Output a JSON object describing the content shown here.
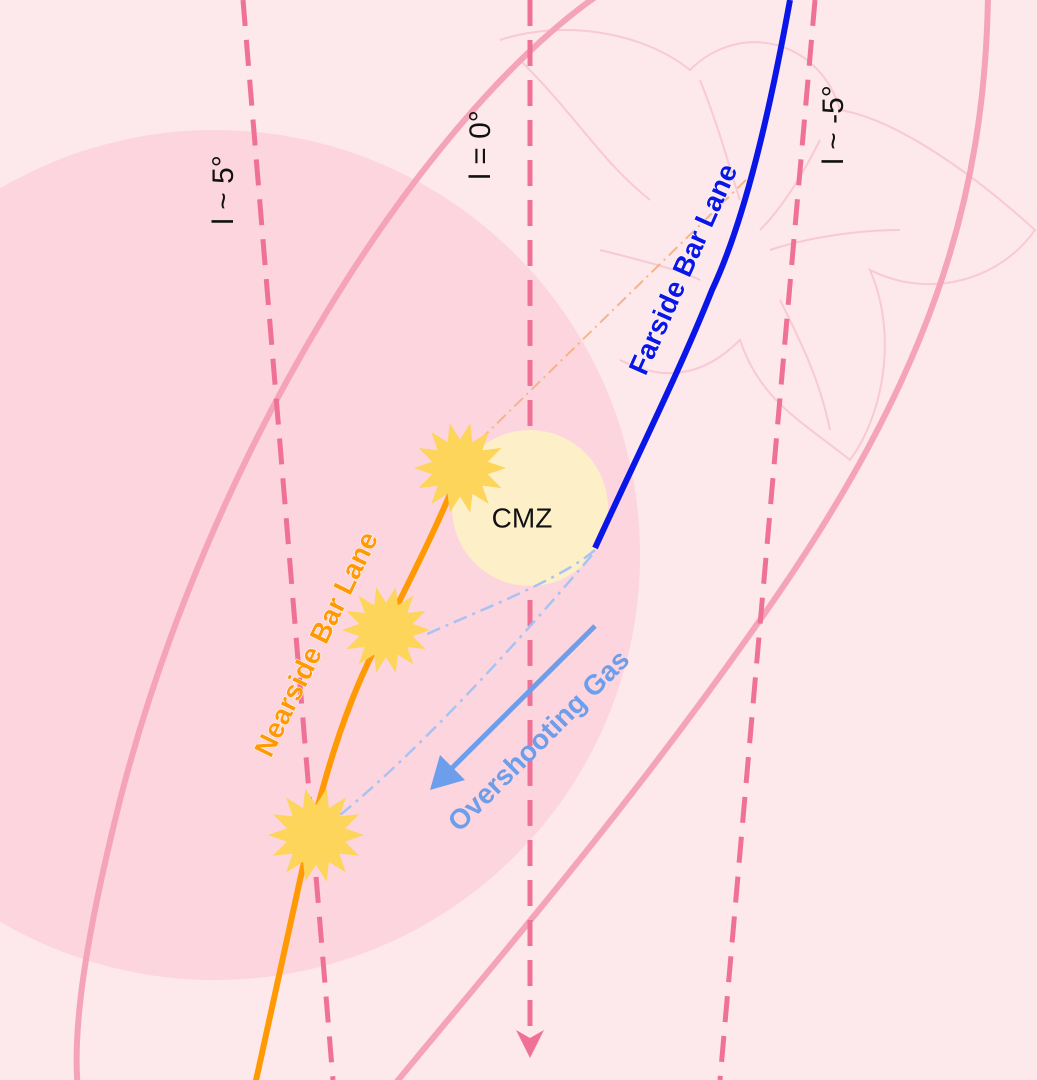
{
  "longitude_lines": [
    {
      "label": "l ~ 5°"
    },
    {
      "label": "l = 0°"
    },
    {
      "label": "l ~ -5°"
    }
  ],
  "regions": {
    "cmz": "CMZ"
  },
  "lanes": {
    "nearside": "Nearside Bar Lane",
    "farside": "Farside Bar Lane"
  },
  "flow": {
    "overshooting": "Overshooting Gas"
  }
}
